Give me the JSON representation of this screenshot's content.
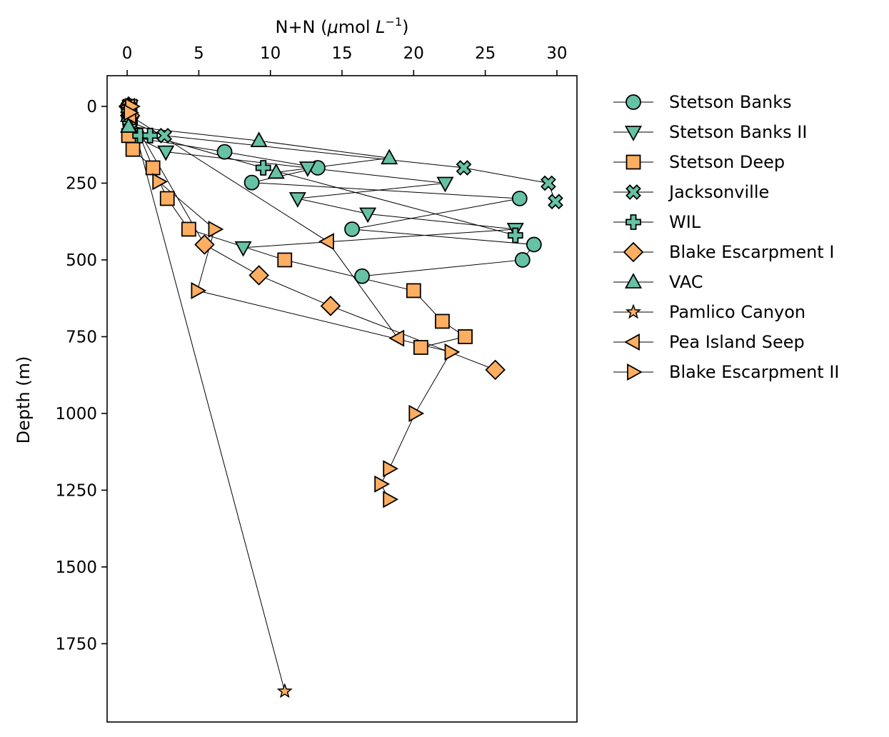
{
  "chart_data": {
    "type": "scatter",
    "xlabel": "N+N",
    "xlabel_unit_prefix": "(",
    "xlabel_unit_mu": "μ",
    "xlabel_unit_mol": "mol ",
    "xlabel_unit_L": "L",
    "xlabel_unit_exp": "−1",
    "xlabel_unit_suffix": ")",
    "ylabel": "Depth (m)",
    "xlim": [
      -1.4,
      31.4
    ],
    "ylim": [
      2005,
      -100
    ],
    "y_inverted": true,
    "x_axis_position": "top",
    "xticks": [
      0,
      5,
      10,
      15,
      20,
      25,
      30
    ],
    "yticks": [
      0,
      250,
      500,
      750,
      1000,
      1250,
      1500,
      1750
    ],
    "grid": false,
    "legend_position": "outside-right",
    "colors": {
      "green": "#66c2a5",
      "orange": "#fdae61",
      "edge": "#000000"
    },
    "series": [
      {
        "name": "Stetson Banks",
        "marker": "circle",
        "color": "#66c2a5",
        "points": [
          [
            0.1,
            0
          ],
          [
            0.2,
            50
          ],
          [
            0.3,
            100
          ],
          [
            6.8,
            148
          ],
          [
            13.3,
            200
          ],
          [
            8.7,
            248
          ],
          [
            27.4,
            300
          ],
          [
            15.7,
            400
          ],
          [
            28.4,
            450
          ],
          [
            27.6,
            500
          ],
          [
            16.4,
            553
          ]
        ]
      },
      {
        "name": "Stetson Banks II",
        "marker": "triangle-down",
        "color": "#66c2a5",
        "points": [
          [
            0.2,
            0
          ],
          [
            0.3,
            50
          ],
          [
            0.6,
            100
          ],
          [
            2.7,
            148
          ],
          [
            12.6,
            200
          ],
          [
            22.2,
            250
          ],
          [
            11.9,
            300
          ],
          [
            16.8,
            350
          ],
          [
            27.1,
            400
          ],
          [
            8.1,
            460
          ]
        ]
      },
      {
        "name": "Stetson Deep",
        "marker": "square",
        "color": "#fdae61",
        "points": [
          [
            0.2,
            0
          ],
          [
            0.1,
            25
          ],
          [
            0.2,
            50
          ],
          [
            0.1,
            95
          ],
          [
            0.4,
            140
          ],
          [
            1.8,
            200
          ],
          [
            2.8,
            300
          ],
          [
            4.3,
            400
          ],
          [
            11.0,
            500
          ],
          [
            20.0,
            600
          ],
          [
            22.0,
            700
          ],
          [
            23.6,
            750
          ],
          [
            20.5,
            785
          ]
        ]
      },
      {
        "name": "Jacksonville",
        "marker": "x",
        "color": "#66c2a5",
        "points": [
          [
            0.1,
            0
          ],
          [
            0.2,
            50
          ],
          [
            2.6,
            95
          ],
          [
            23.5,
            200
          ],
          [
            29.4,
            250
          ],
          [
            29.9,
            310
          ]
        ]
      },
      {
        "name": "WIL",
        "marker": "plus",
        "color": "#66c2a5",
        "points": [
          [
            0.1,
            0
          ],
          [
            0.2,
            50
          ],
          [
            0.9,
            95
          ],
          [
            1.6,
            95
          ],
          [
            9.5,
            200
          ],
          [
            27.1,
            420
          ]
        ]
      },
      {
        "name": "Blake Escarpment I",
        "marker": "diamond",
        "color": "#fdae61",
        "points": [
          [
            0.1,
            0
          ],
          [
            0.2,
            30
          ],
          [
            5.4,
            450
          ],
          [
            9.2,
            550
          ],
          [
            14.2,
            650
          ],
          [
            25.7,
            858
          ]
        ]
      },
      {
        "name": "VAC",
        "marker": "triangle-up",
        "color": "#66c2a5",
        "points": [
          [
            0.1,
            0
          ],
          [
            0.1,
            30
          ],
          [
            0.1,
            65
          ],
          [
            9.2,
            112
          ],
          [
            18.3,
            168
          ],
          [
            10.4,
            215
          ]
        ]
      },
      {
        "name": "Pamlico Canyon",
        "marker": "star",
        "color": "#fdae61",
        "points": [
          [
            0.1,
            0
          ],
          [
            11.0,
            1905
          ]
        ]
      },
      {
        "name": "Pea Island Seep",
        "marker": "triangle-left",
        "color": "#fdae61",
        "points": [
          [
            0.1,
            0
          ],
          [
            0.2,
            30
          ],
          [
            14.0,
            440
          ],
          [
            18.9,
            755
          ]
        ]
      },
      {
        "name": "Blake Escarpment II",
        "marker": "triangle-right",
        "color": "#fdae61",
        "points": [
          [
            0.3,
            0
          ],
          [
            0.2,
            20
          ],
          [
            2.2,
            245
          ],
          [
            6.1,
            400
          ],
          [
            4.9,
            600
          ],
          [
            22.6,
            800
          ],
          [
            20.1,
            1000
          ],
          [
            18.3,
            1180
          ],
          [
            17.7,
            1230
          ],
          [
            18.3,
            1280
          ]
        ]
      }
    ]
  }
}
